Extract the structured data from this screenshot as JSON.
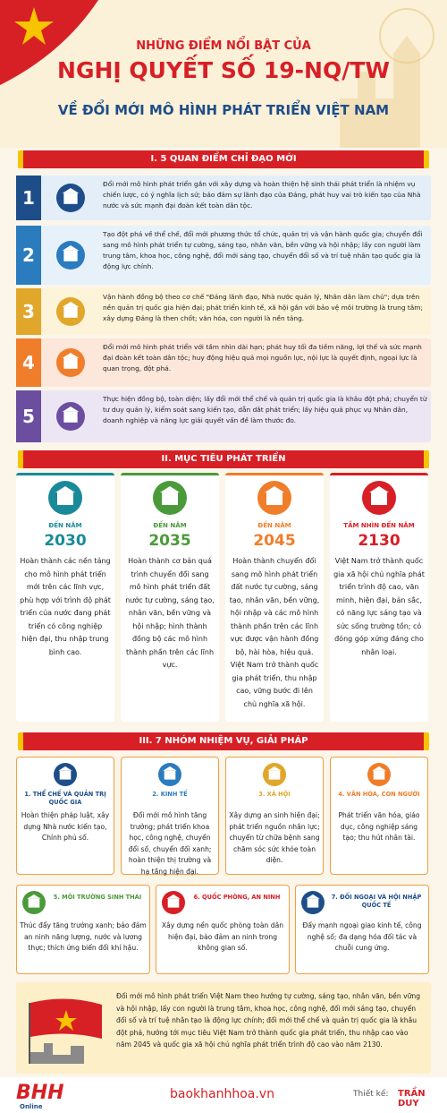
{
  "header": {
    "line1": "NHỮNG ĐIỂM NỔI BẬT CỦA",
    "line2": "NGHỊ QUYẾT SỐ 19-NQ/TW",
    "line3": "VỀ ĐỔI MỚI MÔ HÌNH PHÁT TRIỂN VIỆT NAM"
  },
  "section1": {
    "title": "I. 5 QUAN ĐIỂM CHỈ ĐẠO MỚI",
    "items": [
      {
        "number": "1",
        "text": "Đổi mới mô hình phát triển gắn với xây dựng và hoàn thiện hệ sinh thái phát triển là nhiệm vụ chiến lược, có ý nghĩa lịch sử; bảo đảm sự lãnh đạo của Đảng, phát huy vai trò kiến tạo của Nhà nước và sức mạnh đại đoàn kết toàn dân tộc."
      },
      {
        "number": "2",
        "text": "Tạo đột phá về thể chế, đổi mới phương thức tổ chức, quản trị và vận hành quốc gia; chuyển đổi sang mô hình phát triển tự cường, sáng tạo, nhân văn, bền vững và hội nhập; lấy con người làm trung tâm, khoa học, công nghệ, đổi mới sáng tạo, chuyển đổi số và trí tuệ nhân tạo quốc gia là động lực chính."
      },
      {
        "number": "3",
        "text": "Vận hành đồng bộ theo cơ chế \"Đảng lãnh đạo, Nhà nước quản lý, Nhân dân làm chủ\"; dựa trên nền quản trị quốc gia hiện đại; phát triển kinh tế, xã hội gắn với bảo vệ môi trường là trung tâm; xây dựng Đảng là then chốt; văn hóa, con người là nền tảng."
      },
      {
        "number": "4",
        "text": "Đổi mới mô hình phát triển với tầm nhìn dài hạn; phát huy tối đa tiềm năng, lợi thế và sức mạnh đại đoàn kết toàn dân tộc; huy động hiệu quả mọi nguồn lực, nội lực là quyết định, ngoại lực là quan trọng, đột phá."
      },
      {
        "number": "5",
        "text": "Thực hiện đồng bộ, toàn diện; lấy đổi mới thể chế và quản trị quốc gia là khâu đột phá; chuyển từ tư duy quản lý, kiểm soát sang kiến tạo, dẫn dắt phát triển; lấy hiệu quả phục vụ Nhân dân, doanh nghiệp và năng lực giải quyết vấn đề làm thước đo."
      }
    ]
  },
  "section2": {
    "title": "II. MỤC TIÊU PHÁT TRIỂN",
    "goals": [
      {
        "label": "ĐẾN NĂM",
        "year": "2030",
        "text": "Hoàn thành các nền tảng cho mô hình phát triển mới trên các lĩnh vực, phù hợp với trình độ phát triển của nước đang phát triển có công nghiệp hiện đại, thu nhập trung bình cao."
      },
      {
        "label": "ĐẾN NĂM",
        "year": "2035",
        "text": "Hoàn thành cơ bản quá trình chuyển đổi sang mô hình phát triển đất nước tự cường, sáng tạo, nhân văn, bền vững và hội nhập; hình thành đồng bộ các mô hình thành phần trên các lĩnh vực."
      },
      {
        "label": "ĐẾN NĂM",
        "year": "2045",
        "text": "Hoàn thành chuyển đổi sang mô hình phát triển đất nước tự cường, sáng tạo, nhân văn, bền vững, hội nhập và các mô hình thành phần trên các lĩnh vực được vận hành đồng bộ, hài hòa, hiệu quả. Việt Nam trở thành quốc gia phát triển, thu nhập cao, vững bước đi lên chủ nghĩa xã hội."
      },
      {
        "label": "TẦM NHÌN ĐẾN NĂM",
        "year": "2130",
        "text": "Việt Nam trở thành quốc gia xã hội chủ nghĩa phát triển trình độ cao, văn minh, hiện đại, bản sắc, có năng lực sáng tạo và sức sống trường tồn; có đóng góp xứng đáng cho nhân loại."
      }
    ]
  },
  "section3": {
    "title": "III. 7 NHÓM NHIỆM VỤ, GIẢI PHÁP",
    "tasks": [
      {
        "title": "1. THỂ CHẾ VÀ QUẢN TRỊ QUỐC GIA",
        "text": "Hoàn thiện pháp luật, xây dựng Nhà nước kiến tạo, Chính phủ số."
      },
      {
        "title": "2. KINH TẾ",
        "text": "Đổi mới mô hình tăng trưởng; phát triển khoa học, công nghệ, chuyển đổi số, chuyển đổi xanh; hoàn thiện thị trường và hạ tầng hiện đại."
      },
      {
        "title": "3. XÃ HỘI",
        "text": "Xây dựng an sinh hiện đại; phát triển nguồn nhân lực; chuyển từ chữa bệnh sang chăm sóc sức khỏe toàn diện."
      },
      {
        "title": "4. VĂN HÓA, CON NGƯỜI",
        "text": "Phát triển văn hóa, giáo dục, công nghiệp sáng tạo; thu hút nhân tài."
      },
      {
        "title": "5. MÔI TRƯỜNG SINH THÁI",
        "text": "Thúc đẩy tăng trưởng xanh; bảo đảm an ninh năng lượng, nước và lương thực; thích ứng biến đổi khí hậu."
      },
      {
        "title": "6. QUỐC PHÒNG, AN NINH",
        "text": "Xây dựng nền quốc phòng toàn dân hiện đại, bảo đảm an ninh trong không gian số."
      },
      {
        "title": "7. ĐỐI NGOẠI VÀ HỘI NHẬP QUỐC TẾ",
        "text": "Đẩy mạnh ngoại giao kinh tế, công nghệ số; đa dạng hóa đối tác và chuỗi cung ứng."
      }
    ]
  },
  "conclusion": "Đổi mới mô hình phát triển Việt Nam theo hướng tự cường, sáng tạo, nhân văn, bền vững và hội nhập, lấy con người là trung tâm, khoa học, công nghệ, đổi mới sáng tạo, chuyển đổi số và trí tuệ nhân tạo là động lực chính; đổi mới thể chế và quản trị quốc gia là khâu đột phá, hướng tới mục tiêu Việt Nam trở thành quốc gia phát triển, thu nhập cao vào năm 2045 và quốc gia xã hội chủ nghĩa phát triển trình độ cao vào năm 2130.",
  "footer": {
    "logo": "BHH",
    "logo_sub": "Online",
    "site": "baokhanhhoa.vn",
    "designer_label": "Thiết kế:",
    "designer": "TRẦN DUY"
  }
}
